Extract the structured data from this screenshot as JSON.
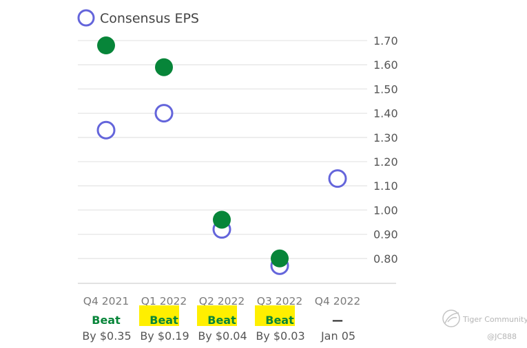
{
  "chart_data": {
    "type": "scatter",
    "legend": [
      {
        "label": "Consensus EPS",
        "marker": "hollow-circle",
        "color": "#6465db"
      }
    ],
    "legend_position": "top-left",
    "categories": [
      "Q4 2021",
      "Q1 2022",
      "Q2 2022",
      "Q3 2022",
      "Q4 2022"
    ],
    "series": [
      {
        "name": "Consensus EPS",
        "style": "hollow",
        "color": "#6465db",
        "values": [
          1.33,
          1.4,
          0.92,
          0.77,
          1.13
        ]
      },
      {
        "style": "filled",
        "color": "#078539",
        "values": [
          1.68,
          1.59,
          0.96,
          0.8,
          null
        ]
      }
    ],
    "y_ticks": [
      "1.70",
      "1.60",
      "1.50",
      "1.40",
      "1.30",
      "1.20",
      "1.10",
      "1.00",
      "0.90",
      "0.80"
    ],
    "ylim": [
      0.7,
      1.7
    ],
    "y_axis_position": "right",
    "grid": true,
    "results": [
      {
        "status": "Beat",
        "detail": "By $0.35",
        "highlight": false
      },
      {
        "status": "Beat",
        "detail": "By $0.19",
        "highlight": true
      },
      {
        "status": "Beat",
        "detail": "By $0.04",
        "highlight": true
      },
      {
        "status": "Beat",
        "detail": "By $0.03",
        "highlight": true
      },
      {
        "status": "—",
        "detail": "Jan 05",
        "highlight": false
      }
    ],
    "colors": {
      "beat": "#078539",
      "pending": "#222222",
      "highlight": "#ffef00",
      "grid": "#e6e6e6"
    }
  },
  "watermark": {
    "brand": "Tiger Community",
    "handle": "@JC888"
  }
}
